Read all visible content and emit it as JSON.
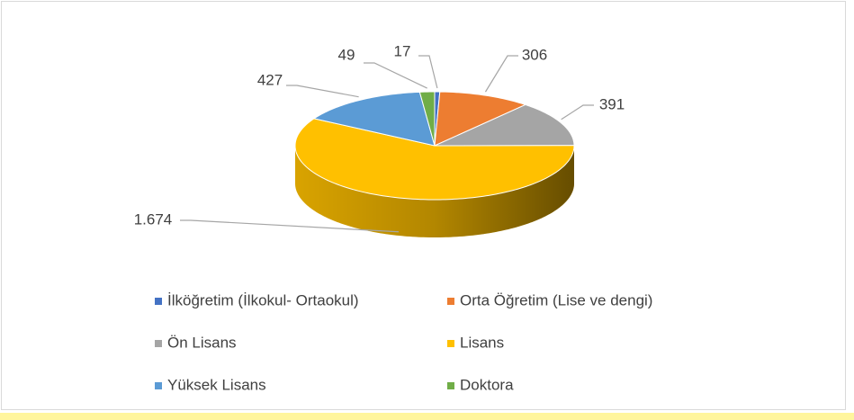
{
  "chart_data": {
    "type": "pie",
    "categories": [
      "İlköğretim (İlkokul- Ortaokul)",
      "Orta Öğretim (Lise ve dengi)",
      "Ön Lisans",
      "Lisans",
      "Yüksek Lisans",
      "Doktora"
    ],
    "values": [
      17,
      306,
      391,
      1674,
      427,
      49
    ],
    "value_labels": [
      "17",
      "306",
      "391",
      "1.674",
      "427",
      "49"
    ],
    "colors": [
      "#4472c4",
      "#ed7d31",
      "#a5a5a5",
      "#ffc000",
      "#5b9bd5",
      "#70ad47"
    ],
    "legend": "bottom"
  }
}
